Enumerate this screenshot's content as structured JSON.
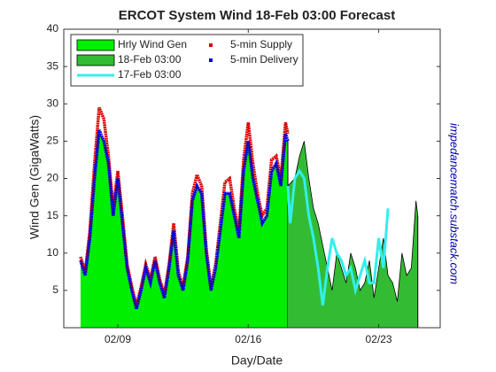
{
  "chart_data": {
    "type": "area",
    "title": "ERCOT System Wind  18-Feb 03:00 Forecast",
    "x_label": "Day/Date",
    "y_label": "Wind Gen (GigaWatts)",
    "annotation": "impedancematch.substack.com",
    "xlim": [
      6.1,
      26.3
    ],
    "ylim": [
      0,
      40
    ],
    "xticks": [
      {
        "value": 9,
        "label": "02/09"
      },
      {
        "value": 16,
        "label": "02/16"
      },
      {
        "value": 23,
        "label": "02/23"
      }
    ],
    "yticks": [
      5,
      10,
      15,
      20,
      25,
      30,
      35,
      40
    ],
    "series": [
      {
        "name": "Hrly Wind Gen",
        "color": "#00ee00",
        "style": "area",
        "x": [
          7,
          7.25,
          7.5,
          7.75,
          8,
          8.25,
          8.5,
          8.75,
          9,
          9.25,
          9.5,
          9.75,
          10,
          10.25,
          10.5,
          10.75,
          11,
          11.25,
          11.5,
          11.75,
          12,
          12.25,
          12.5,
          12.75,
          13,
          13.25,
          13.5,
          13.75,
          14,
          14.25,
          14.5,
          14.75,
          15,
          15.25,
          15.5,
          15.75,
          16,
          16.25,
          16.5,
          16.75,
          17,
          17.25,
          17.5,
          17.75,
          18,
          18.125
        ],
        "values": [
          9,
          7,
          12,
          20,
          26,
          25,
          22,
          15,
          20,
          14,
          8,
          5,
          2.5,
          5,
          8,
          6,
          9,
          6,
          4,
          8,
          13,
          7,
          5,
          9,
          17,
          19,
          18,
          10,
          5,
          8,
          13,
          18,
          18,
          15,
          12,
          21,
          25,
          20,
          17,
          14,
          15,
          21,
          22,
          19,
          25,
          25
        ]
      },
      {
        "name": "18-Feb 03:00",
        "color": "#33bb33",
        "style": "area",
        "x": [
          18.125,
          18.5,
          18.75,
          19,
          19.25,
          19.5,
          19.75,
          20,
          20.25,
          20.5,
          20.75,
          21,
          21.25,
          21.5,
          21.75,
          22,
          22.25,
          22.5,
          22.75,
          23,
          23.25,
          23.5,
          23.75,
          24,
          24.25,
          24.5,
          24.75,
          25,
          25.1
        ],
        "values": [
          19,
          20,
          23,
          25,
          20,
          16,
          14,
          11,
          8,
          5,
          10,
          8,
          6,
          10,
          8,
          5,
          6,
          9,
          4,
          8,
          12,
          7,
          6,
          3.5,
          10,
          7,
          8,
          17,
          15
        ]
      },
      {
        "name": "17-Feb 03:00",
        "color": "#33eeee",
        "style": "line",
        "x": [
          18.125,
          18.25,
          18.5,
          18.75,
          19,
          19.25,
          19.5,
          19.75,
          20,
          20.25,
          20.5,
          20.75,
          21,
          21.25,
          21.5,
          21.75,
          22,
          22.25,
          22.5,
          22.75,
          23,
          23.25,
          23.5
        ],
        "values": [
          19,
          14,
          20,
          21,
          20,
          15,
          12,
          8,
          3,
          8,
          12,
          10,
          9,
          7,
          8,
          5,
          7,
          9,
          6,
          6,
          12,
          8,
          16
        ]
      },
      {
        "name": "5-min Supply",
        "color": "#dd0000",
        "style": "dots",
        "x": [
          7,
          7.25,
          7.5,
          7.75,
          8,
          8.25,
          8.5,
          8.75,
          9,
          9.25,
          9.5,
          9.75,
          10,
          10.25,
          10.5,
          10.75,
          11,
          11.25,
          11.5,
          11.75,
          12,
          12.25,
          12.5,
          12.75,
          13,
          13.25,
          13.5,
          13.75,
          14,
          14.25,
          14.5,
          14.75,
          15,
          15.25,
          15.5,
          15.75,
          16,
          16.25,
          16.5,
          16.75,
          17,
          17.25,
          17.5,
          17.75,
          18,
          18.125
        ],
        "values": [
          9.5,
          7.5,
          13,
          22,
          29.5,
          28,
          23,
          16,
          21,
          15,
          8.5,
          5.5,
          3,
          5.5,
          8.5,
          6.5,
          9.5,
          6.5,
          4.5,
          8.5,
          14,
          7.5,
          5.5,
          9.5,
          18,
          20.5,
          19,
          10.5,
          5.5,
          8.5,
          14,
          19.5,
          20,
          16,
          13,
          22.5,
          27.5,
          22,
          18,
          15,
          16,
          22.5,
          23,
          20,
          27.5,
          26
        ]
      },
      {
        "name": "5-min Delivery",
        "color": "#0000dd",
        "style": "dots",
        "x": [
          7,
          7.25,
          7.5,
          7.75,
          8,
          8.25,
          8.5,
          8.75,
          9,
          9.25,
          9.5,
          9.75,
          10,
          10.25,
          10.5,
          10.75,
          11,
          11.25,
          11.5,
          11.75,
          12,
          12.25,
          12.5,
          12.75,
          13,
          13.25,
          13.5,
          13.75,
          14,
          14.25,
          14.5,
          14.75,
          15,
          15.25,
          15.5,
          15.75,
          16,
          16.25,
          16.5,
          16.75,
          17,
          17.25,
          17.5,
          17.75,
          18,
          18.125
        ],
        "values": [
          9,
          7,
          12,
          20,
          26.5,
          25,
          22,
          15,
          20,
          14,
          8,
          5,
          2.5,
          5,
          8,
          6,
          9,
          6,
          4,
          8,
          13,
          7,
          5,
          9,
          17,
          19,
          18,
          10,
          5,
          8,
          13,
          18,
          18,
          15,
          12,
          21,
          25,
          20,
          17,
          14,
          15,
          21,
          22,
          19,
          26,
          25
        ]
      }
    ]
  }
}
